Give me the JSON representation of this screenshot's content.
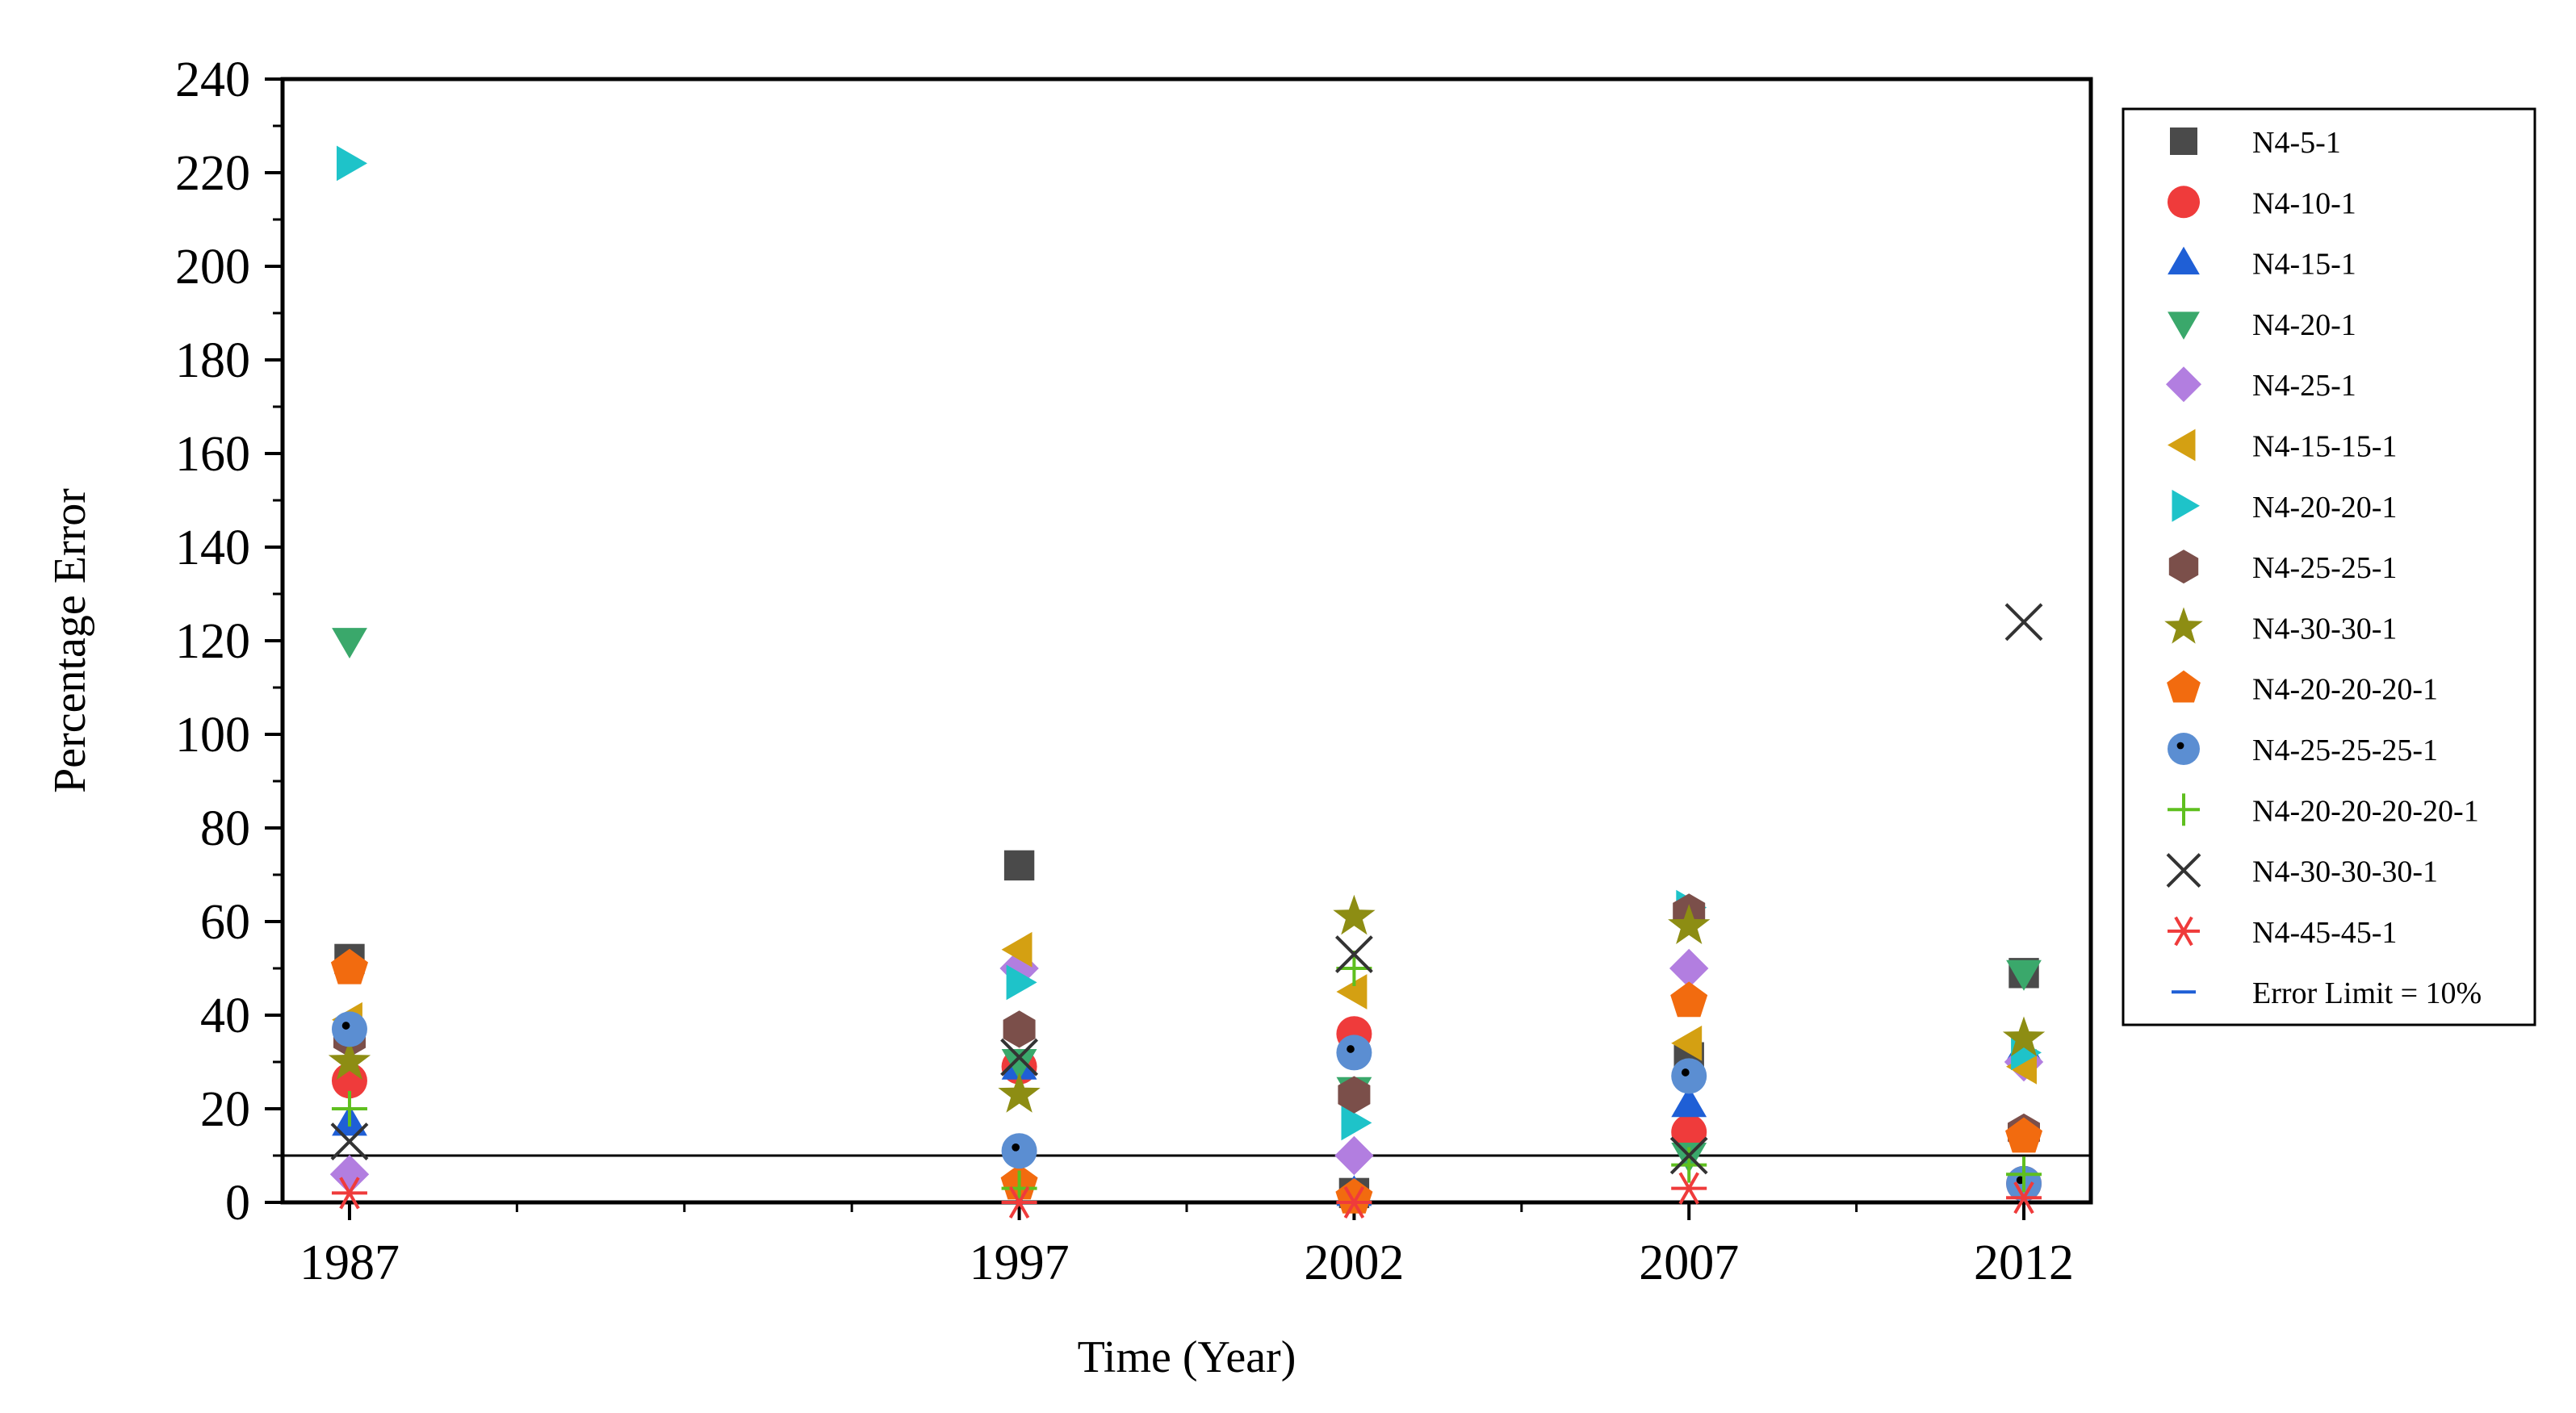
{
  "chart_data": {
    "type": "scatter",
    "xlabel": "Time (Year)",
    "ylabel": "Percentage Error",
    "xlim": [
      1986,
      2013
    ],
    "ylim": [
      0,
      240
    ],
    "x_ticks": [
      1987,
      1997,
      2002,
      2007,
      2012
    ],
    "y_ticks": [
      0,
      20,
      40,
      60,
      80,
      100,
      120,
      140,
      160,
      180,
      200,
      220,
      240
    ],
    "grid": false,
    "legend_position": "right",
    "reference_line": {
      "name": "Error Limit = 10%",
      "y": 10,
      "color": "#000000"
    },
    "series": [
      {
        "name": "N4-5-1",
        "marker": "square",
        "color": "#4a4a4a",
        "x": [
          1987,
          1997,
          2002,
          2007,
          2012
        ],
        "y": [
          52,
          72,
          2,
          31,
          49
        ]
      },
      {
        "name": "N4-10-1",
        "marker": "circle",
        "color": "#ef3b3b",
        "x": [
          1987,
          1997,
          2002,
          2007,
          2012
        ],
        "y": [
          26,
          29,
          36,
          15,
          4
        ]
      },
      {
        "name": "N4-15-1",
        "marker": "triangle-up",
        "color": "#1f5fd6",
        "x": [
          1987,
          1997,
          2002,
          2007,
          2012
        ],
        "y": [
          17,
          29,
          2,
          21,
          33
        ]
      },
      {
        "name": "N4-20-1",
        "marker": "triangle-down",
        "color": "#3aa86b",
        "x": [
          1987,
          1997,
          2002,
          2007,
          2012
        ],
        "y": [
          120,
          30,
          24,
          10,
          49
        ]
      },
      {
        "name": "N4-25-1",
        "marker": "diamond",
        "color": "#b27ee0",
        "x": [
          1987,
          1997,
          2002,
          2007,
          2012
        ],
        "y": [
          6,
          50,
          10,
          50,
          30
        ]
      },
      {
        "name": "N4-15-15-1",
        "marker": "triangle-left",
        "color": "#d4a012",
        "x": [
          1987,
          1997,
          2002,
          2007,
          2012
        ],
        "y": [
          39,
          54,
          45,
          34,
          29
        ]
      },
      {
        "name": "N4-20-20-1",
        "marker": "triangle-right",
        "color": "#1ec3c9",
        "x": [
          1987,
          1997,
          2002,
          2007,
          2012
        ],
        "y": [
          222,
          47,
          17,
          63,
          32
        ]
      },
      {
        "name": "N4-25-25-1",
        "marker": "hexagon",
        "color": "#7b4f4a",
        "x": [
          1987,
          1997,
          2002,
          2007,
          2012
        ],
        "y": [
          35,
          37,
          23,
          62,
          15
        ]
      },
      {
        "name": "N4-30-30-1",
        "marker": "star",
        "color": "#8d8d13",
        "x": [
          1987,
          1997,
          2002,
          2007,
          2012
        ],
        "y": [
          30,
          23,
          61,
          59,
          35
        ]
      },
      {
        "name": "N4-20-20-20-1",
        "marker": "pentagon",
        "color": "#f26b0f",
        "x": [
          1987,
          1997,
          2002,
          2007,
          2012
        ],
        "y": [
          50,
          4,
          1,
          43,
          14
        ]
      },
      {
        "name": "N4-25-25-25-1",
        "marker": "dotted-circle",
        "color": "#5b8ed2",
        "x": [
          1987,
          1997,
          2002,
          2007,
          2012
        ],
        "y": [
          37,
          11,
          32,
          27,
          4
        ]
      },
      {
        "name": "N4-20-20-20-20-1",
        "marker": "plus",
        "color": "#5fbf1f",
        "x": [
          1987,
          1997,
          2002,
          2007,
          2012
        ],
        "y": [
          20,
          3,
          50,
          8,
          6
        ]
      },
      {
        "name": "N4-30-30-30-1",
        "marker": "x",
        "color": "#333333",
        "x": [
          1987,
          1997,
          2002,
          2007,
          2012
        ],
        "y": [
          13,
          31,
          53,
          10,
          124
        ]
      },
      {
        "name": "N4-45-45-1",
        "marker": "asterisk",
        "color": "#ef3b3b",
        "x": [
          1987,
          1997,
          2002,
          2007,
          2012
        ],
        "y": [
          2,
          0,
          0,
          3,
          1
        ]
      }
    ],
    "legend_entries": [
      "N4-5-1",
      "N4-10-1",
      "N4-15-1",
      "N4-20-1",
      "N4-25-1",
      "N4-15-15-1",
      "N4-20-20-1",
      "N4-25-25-1",
      "N4-30-30-1",
      "N4-20-20-20-1",
      "N4-25-25-25-1",
      "N4-20-20-20-20-1",
      "N4-30-30-30-1",
      "N4-45-45-1",
      "Error Limit = 10%"
    ],
    "legend_colors": {
      "error_limit": "#1f5fd6"
    }
  }
}
